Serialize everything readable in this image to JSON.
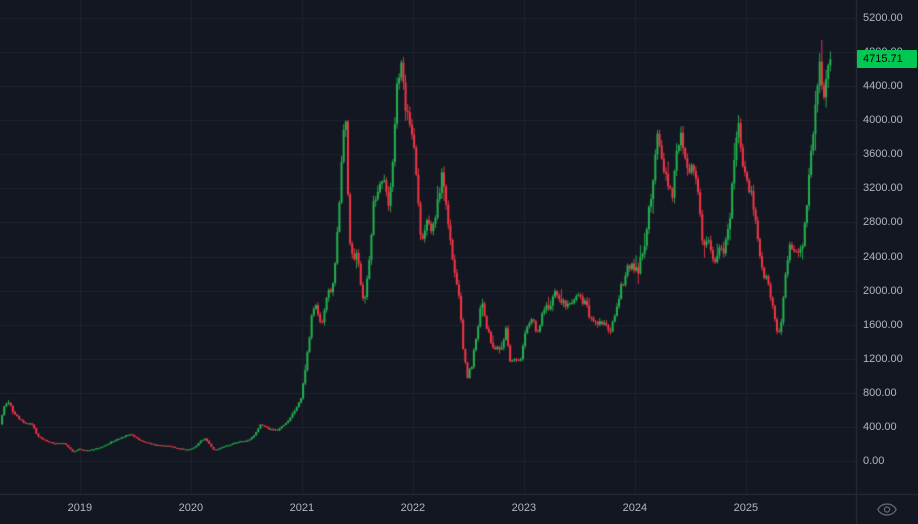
{
  "chart_data": {
    "type": "candlestick",
    "title": "",
    "timeframe": "weekly",
    "last_price": "4715.71",
    "y_axis": {
      "min": 0,
      "max": 5200,
      "tick_step": 400,
      "ticks": [
        "5200.00",
        "4800.00",
        "4400.00",
        "4000.00",
        "3600.00",
        "3200.00",
        "2800.00",
        "2400.00",
        "2000.00",
        "1600.00",
        "1200.00",
        "800.00",
        "400.00",
        "0.00"
      ]
    },
    "x_axis": {
      "ticks": [
        "2019",
        "2020",
        "2021",
        "2022",
        "2023",
        "2024",
        "2025"
      ]
    },
    "grid": true,
    "legend_position": "none",
    "series_name": "price",
    "anchors": [
      [
        2018.28,
        430
      ],
      [
        2018.32,
        650
      ],
      [
        2018.35,
        700
      ],
      [
        2018.4,
        580
      ],
      [
        2018.47,
        470
      ],
      [
        2018.52,
        450
      ],
      [
        2018.57,
        420
      ],
      [
        2018.62,
        290
      ],
      [
        2018.7,
        230
      ],
      [
        2018.78,
        205
      ],
      [
        2018.85,
        215
      ],
      [
        2018.9,
        155
      ],
      [
        2018.94,
        105
      ],
      [
        2018.99,
        140
      ],
      [
        2019.05,
        120
      ],
      [
        2019.12,
        135
      ],
      [
        2019.2,
        165
      ],
      [
        2019.32,
        250
      ],
      [
        2019.45,
        310
      ],
      [
        2019.48,
        290
      ],
      [
        2019.55,
        230
      ],
      [
        2019.62,
        210
      ],
      [
        2019.7,
        185
      ],
      [
        2019.8,
        175
      ],
      [
        2019.88,
        150
      ],
      [
        2019.95,
        132
      ],
      [
        2020.02,
        145
      ],
      [
        2020.08,
        225
      ],
      [
        2020.13,
        265
      ],
      [
        2020.2,
        135
      ],
      [
        2020.23,
        130
      ],
      [
        2020.3,
        170
      ],
      [
        2020.38,
        205
      ],
      [
        2020.45,
        230
      ],
      [
        2020.52,
        235
      ],
      [
        2020.58,
        320
      ],
      [
        2020.63,
        430
      ],
      [
        2020.7,
        370
      ],
      [
        2020.78,
        360
      ],
      [
        2020.85,
        440
      ],
      [
        2020.92,
        560
      ],
      [
        2020.99,
        735
      ],
      [
        2021.04,
        1150
      ],
      [
        2021.09,
        1700
      ],
      [
        2021.13,
        1850
      ],
      [
        2021.17,
        1550
      ],
      [
        2021.22,
        1900
      ],
      [
        2021.28,
        2100
      ],
      [
        2021.33,
        2800
      ],
      [
        2021.36,
        3500
      ],
      [
        2021.39,
        4150
      ],
      [
        2021.41,
        3300
      ],
      [
        2021.44,
        2350
      ],
      [
        2021.49,
        2450
      ],
      [
        2021.53,
        2100
      ],
      [
        2021.56,
        1850
      ],
      [
        2021.6,
        2250
      ],
      [
        2021.65,
        3050
      ],
      [
        2021.7,
        3250
      ],
      [
        2021.74,
        3400
      ],
      [
        2021.78,
        2950
      ],
      [
        2021.82,
        3550
      ],
      [
        2021.86,
        4400
      ],
      [
        2021.89,
        4700
      ],
      [
        2021.92,
        4250
      ],
      [
        2021.96,
        4000
      ],
      [
        2022.0,
        3750
      ],
      [
        2022.04,
        3150
      ],
      [
        2022.08,
        2550
      ],
      [
        2022.13,
        2900
      ],
      [
        2022.17,
        2650
      ],
      [
        2022.22,
        3050
      ],
      [
        2022.27,
        3450
      ],
      [
        2022.31,
        2900
      ],
      [
        2022.36,
        2350
      ],
      [
        2022.41,
        2000
      ],
      [
        2022.45,
        1350
      ],
      [
        2022.49,
        980
      ],
      [
        2022.53,
        1120
      ],
      [
        2022.58,
        1550
      ],
      [
        2022.62,
        1850
      ],
      [
        2022.66,
        1600
      ],
      [
        2022.71,
        1350
      ],
      [
        2022.75,
        1300
      ],
      [
        2022.8,
        1330
      ],
      [
        2022.84,
        1580
      ],
      [
        2022.87,
        1150
      ],
      [
        2022.92,
        1220
      ],
      [
        2022.97,
        1200
      ],
      [
        2023.02,
        1550
      ],
      [
        2023.08,
        1650
      ],
      [
        2023.13,
        1480
      ],
      [
        2023.18,
        1800
      ],
      [
        2023.25,
        1850
      ],
      [
        2023.3,
        2000
      ],
      [
        2023.34,
        1850
      ],
      [
        2023.4,
        1800
      ],
      [
        2023.45,
        1900
      ],
      [
        2023.5,
        1920
      ],
      [
        2023.55,
        1850
      ],
      [
        2023.6,
        1680
      ],
      [
        2023.65,
        1650
      ],
      [
        2023.72,
        1600
      ],
      [
        2023.78,
        1560
      ],
      [
        2023.83,
        1800
      ],
      [
        2023.88,
        2050
      ],
      [
        2023.93,
        2250
      ],
      [
        2023.98,
        2300
      ],
      [
        2024.03,
        2250
      ],
      [
        2024.08,
        2500
      ],
      [
        2024.13,
        2950
      ],
      [
        2024.18,
        3500
      ],
      [
        2024.21,
        3900
      ],
      [
        2024.25,
        3550
      ],
      [
        2024.29,
        3300
      ],
      [
        2024.33,
        3050
      ],
      [
        2024.37,
        3500
      ],
      [
        2024.41,
        3850
      ],
      [
        2024.45,
        3550
      ],
      [
        2024.5,
        3400
      ],
      [
        2024.54,
        3450
      ],
      [
        2024.58,
        3150
      ],
      [
        2024.61,
        2450
      ],
      [
        2024.66,
        2650
      ],
      [
        2024.71,
        2350
      ],
      [
        2024.76,
        2450
      ],
      [
        2024.81,
        2500
      ],
      [
        2024.86,
        2950
      ],
      [
        2024.91,
        3650
      ],
      [
        2024.94,
        3950
      ],
      [
        2024.98,
        3400
      ],
      [
        2025.02,
        3250
      ],
      [
        2025.06,
        3100
      ],
      [
        2025.1,
        2700
      ],
      [
        2025.15,
        2250
      ],
      [
        2025.2,
        2050
      ],
      [
        2025.24,
        1850
      ],
      [
        2025.28,
        1550
      ],
      [
        2025.31,
        1500
      ],
      [
        2025.34,
        1900
      ],
      [
        2025.38,
        2450
      ],
      [
        2025.42,
        2550
      ],
      [
        2025.46,
        2500
      ],
      [
        2025.51,
        2550
      ],
      [
        2025.55,
        3000
      ],
      [
        2025.59,
        3600
      ],
      [
        2025.63,
        4250
      ],
      [
        2025.66,
        4780
      ],
      [
        2025.7,
        4250
      ],
      [
        2025.73,
        4500
      ],
      [
        2025.76,
        4715.71
      ]
    ],
    "colors": {
      "background": "#131722",
      "grid": "#1e222d",
      "separator": "#2a2e39",
      "axis_text": "#b2b5be",
      "up": "#23b24e",
      "down": "#f23645",
      "badge_background": "#00c852",
      "badge_text": "#000000",
      "icon": "#787b86"
    }
  },
  "icons": {
    "visibility": "eye-icon"
  }
}
